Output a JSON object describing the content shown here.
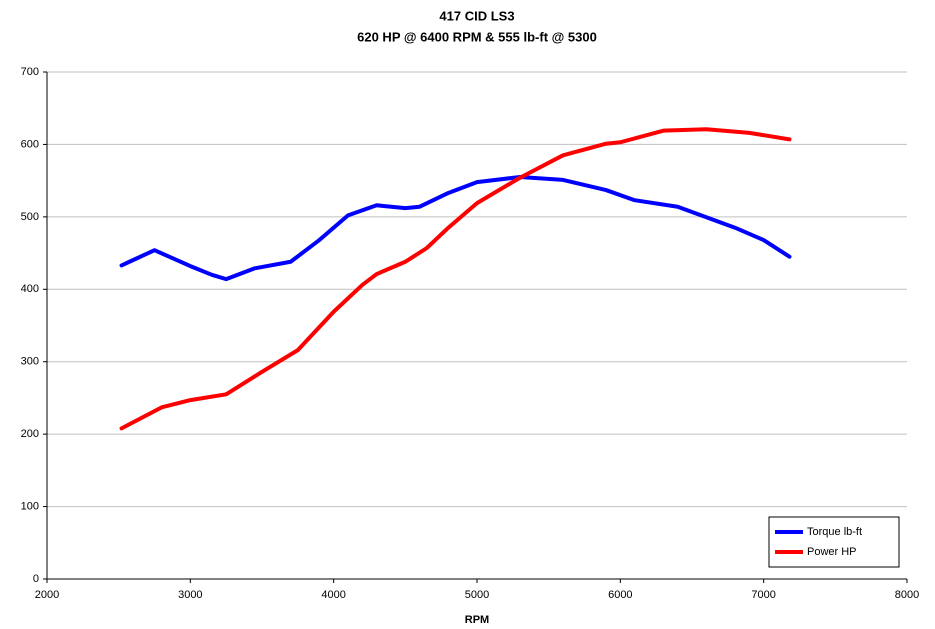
{
  "chart_data": {
    "type": "line",
    "title": "417 CID LS3",
    "subtitle": "620 HP @ 6400 RPM & 555 lb-ft @ 5300",
    "x_label": "RPM",
    "xlim": [
      2000,
      8000
    ],
    "xticks": [
      2000,
      3000,
      4000,
      5000,
      6000,
      7000,
      8000
    ],
    "ylim": [
      0,
      700
    ],
    "yticks": [
      0,
      100,
      200,
      300,
      400,
      500,
      600,
      700
    ],
    "grid": true,
    "legend": "bottom-right",
    "series": [
      {
        "name": "Torque lb-ft",
        "color": "#0000ff",
        "x": [
          2520,
          2750,
          3000,
          3150,
          3250,
          3450,
          3700,
          3900,
          4100,
          4300,
          4500,
          4600,
          4800,
          5000,
          5300,
          5600,
          5900,
          6100,
          6400,
          6800,
          7000,
          7180
        ],
        "values": [
          433,
          454,
          432,
          420,
          414,
          429,
          438,
          468,
          502,
          516,
          512,
          514,
          533,
          548,
          555,
          551,
          537,
          523,
          514,
          485,
          468,
          445
        ]
      },
      {
        "name": "Power HP",
        "color": "#ff0000",
        "x": [
          2520,
          2800,
          3000,
          3250,
          3500,
          3750,
          4000,
          4200,
          4300,
          4500,
          4650,
          4800,
          5000,
          5300,
          5600,
          5900,
          6000,
          6300,
          6600,
          6900,
          7180
        ],
        "values": [
          208,
          237,
          247,
          255,
          286,
          316,
          369,
          406,
          421,
          438,
          457,
          485,
          519,
          554,
          585,
          601,
          603,
          619,
          621,
          616,
          607
        ]
      }
    ]
  }
}
